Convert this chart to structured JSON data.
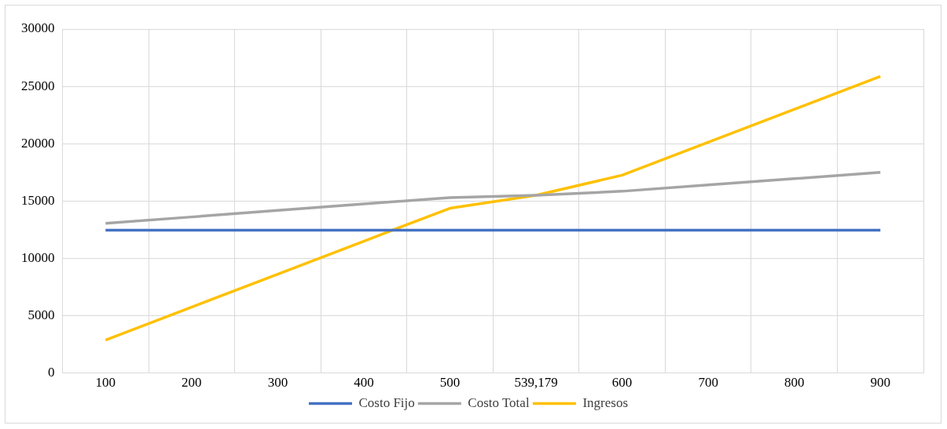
{
  "chart_data": {
    "type": "line",
    "categories": [
      "100",
      "200",
      "300",
      "400",
      "500",
      "539,179",
      "600",
      "700",
      "800",
      "900"
    ],
    "series": [
      {
        "name": "Costo Fijo",
        "color": "#4472c4",
        "values": [
          12450,
          12450,
          12450,
          12450,
          12450,
          12450,
          12450,
          12450,
          12450,
          12450
        ]
      },
      {
        "name": "Costo Total",
        "color": "#a5a5a5",
        "values": [
          13050,
          13610,
          14180,
          14740,
          15300,
          15500,
          15850,
          16400,
          16950,
          17500
        ]
      },
      {
        "name": "Ingresos",
        "color": "#ffc000",
        "values": [
          2870,
          5745,
          8620,
          11495,
          14370,
          15500,
          17250,
          20125,
          23000,
          25870
        ]
      }
    ],
    "ylim": [
      0,
      30000
    ],
    "yticks": [
      0,
      5000,
      10000,
      15000,
      20000,
      25000,
      30000
    ],
    "grid": true,
    "legend": "bottom",
    "marker": "none",
    "line_style": "solid"
  }
}
